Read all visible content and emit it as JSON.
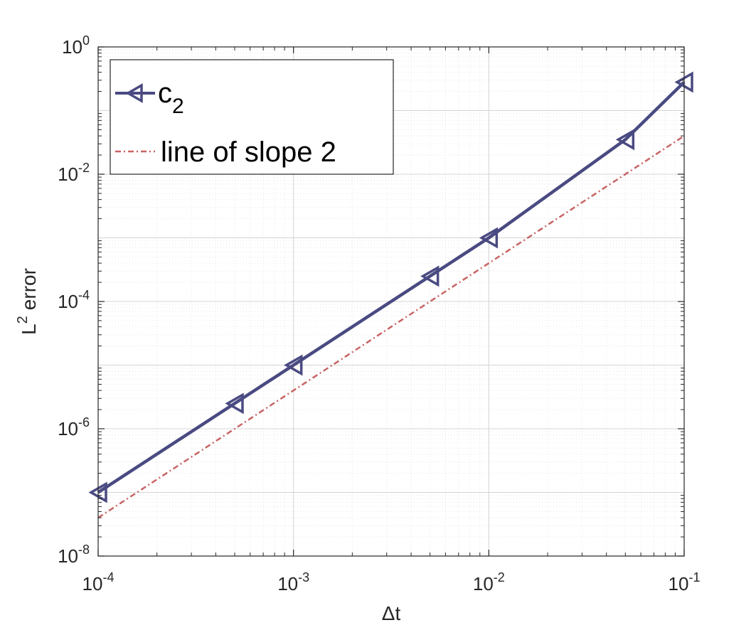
{
  "chart_data": {
    "type": "line",
    "xlabel": "Δt",
    "ylabel_main": "L",
    "ylabel_exp": "2",
    "ylabel_rest": "error",
    "xscale": "log",
    "yscale": "log",
    "xlim": [
      0.0001,
      0.1
    ],
    "ylim": [
      1e-08,
      1
    ],
    "grid": true,
    "minor_grid": true,
    "legend_position": "top-left",
    "x_ticks": [
      {
        "base": "10",
        "exp": "-4",
        "value": 0.0001
      },
      {
        "base": "10",
        "exp": "-3",
        "value": 0.001
      },
      {
        "base": "10",
        "exp": "-2",
        "value": 0.01
      },
      {
        "base": "10",
        "exp": "-1",
        "value": 0.1
      }
    ],
    "y_ticks": [
      {
        "base": "10",
        "exp": "-8",
        "value": 1e-08
      },
      {
        "base": "10",
        "exp": "-6",
        "value": 1e-06
      },
      {
        "base": "10",
        "exp": "-4",
        "value": 0.0001
      },
      {
        "base": "10",
        "exp": "-2",
        "value": 0.01
      },
      {
        "base": "10",
        "exp": "0",
        "value": 1
      }
    ],
    "series": [
      {
        "name_main": "c",
        "name_sub": "2",
        "color": "#4a4a82",
        "style": "solid",
        "marker": "triangle-left",
        "x": [
          0.0001,
          0.0005,
          0.001,
          0.005,
          0.01,
          0.05,
          0.1
        ],
        "y": [
          1e-07,
          2.5e-06,
          1e-05,
          0.00025,
          0.001,
          0.035,
          0.28
        ]
      },
      {
        "name": "line of slope 2",
        "color": "#c86464",
        "style": "dashed",
        "marker": "none",
        "x": [
          0.0001,
          0.1
        ],
        "y": [
          4e-08,
          0.04
        ]
      }
    ]
  }
}
